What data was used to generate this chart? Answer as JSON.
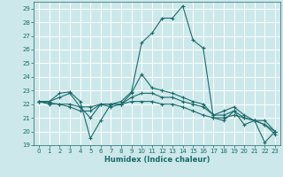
{
  "xlabel": "Humidex (Indice chaleur)",
  "xlim": [
    -0.5,
    23.5
  ],
  "ylim": [
    19,
    29.5
  ],
  "yticks": [
    19,
    20,
    21,
    22,
    23,
    24,
    25,
    26,
    27,
    28,
    29
  ],
  "xticks": [
    0,
    1,
    2,
    3,
    4,
    5,
    6,
    7,
    8,
    9,
    10,
    11,
    12,
    13,
    14,
    15,
    16,
    17,
    18,
    19,
    20,
    21,
    22,
    23
  ],
  "bg_color": "#cde8ea",
  "grid_color": "#b0d8dc",
  "line_color": "#1a6b6b",
  "lines": [
    [
      22.2,
      22.2,
      22.8,
      22.9,
      22.2,
      19.5,
      20.8,
      22.0,
      22.2,
      22.9,
      26.5,
      27.2,
      28.3,
      28.3,
      29.2,
      26.7,
      26.1,
      21.0,
      20.8,
      21.5,
      20.5,
      20.8,
      19.2,
      20.0
    ],
    [
      22.2,
      22.2,
      22.5,
      22.8,
      21.8,
      21.0,
      22.0,
      22.0,
      22.0,
      22.8,
      24.2,
      23.2,
      23.0,
      22.8,
      22.5,
      22.2,
      22.0,
      21.2,
      21.5,
      21.8,
      21.2,
      20.8,
      20.8,
      20.0
    ],
    [
      22.2,
      22.1,
      22.0,
      22.0,
      21.8,
      21.8,
      22.0,
      22.0,
      22.0,
      22.5,
      22.8,
      22.8,
      22.5,
      22.5,
      22.2,
      22.0,
      21.8,
      21.2,
      21.2,
      21.5,
      21.0,
      20.8,
      20.5,
      20.0
    ],
    [
      22.2,
      22.0,
      22.0,
      21.8,
      21.5,
      21.5,
      22.0,
      21.8,
      22.0,
      22.2,
      22.2,
      22.2,
      22.0,
      22.0,
      21.8,
      21.5,
      21.2,
      21.0,
      21.0,
      21.2,
      21.0,
      20.8,
      20.5,
      19.8
    ]
  ]
}
